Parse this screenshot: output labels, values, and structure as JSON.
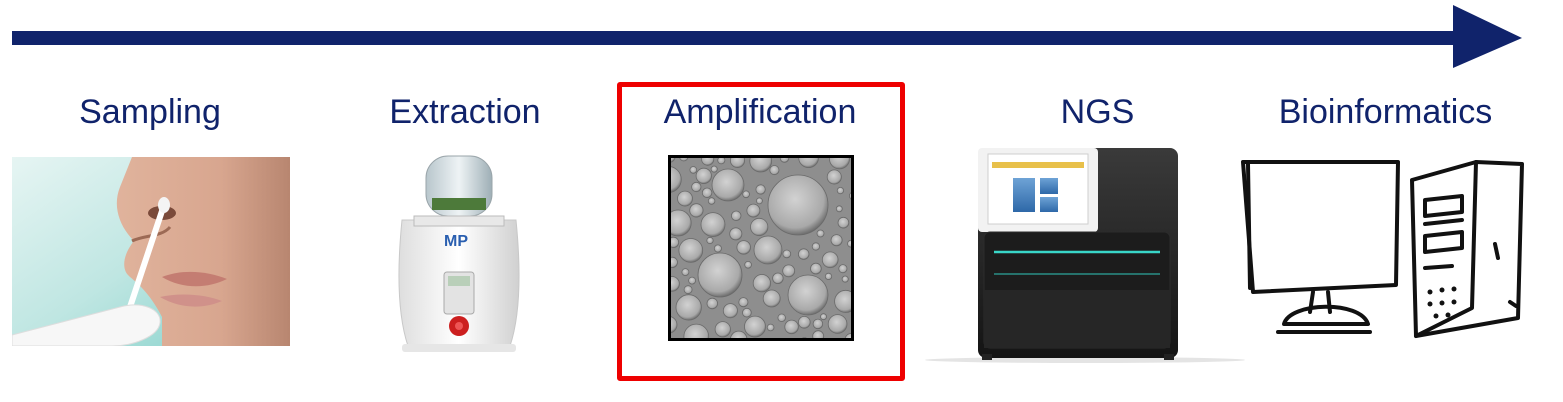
{
  "colors": {
    "label": "#10236b",
    "arrow": "#10236b",
    "highlight": "#ee0000"
  },
  "stages": [
    {
      "label": "Sampling",
      "picture": "nasal-swab-photo"
    },
    {
      "label": "Extraction",
      "picture": "homogenizer-device-photo"
    },
    {
      "label": "Amplification",
      "picture": "droplet-micrograph",
      "highlighted": true
    },
    {
      "label": "NGS",
      "picture": "sequencer-instrument-photo"
    },
    {
      "label": "Bioinformatics",
      "picture": "computer-sketch"
    }
  ]
}
